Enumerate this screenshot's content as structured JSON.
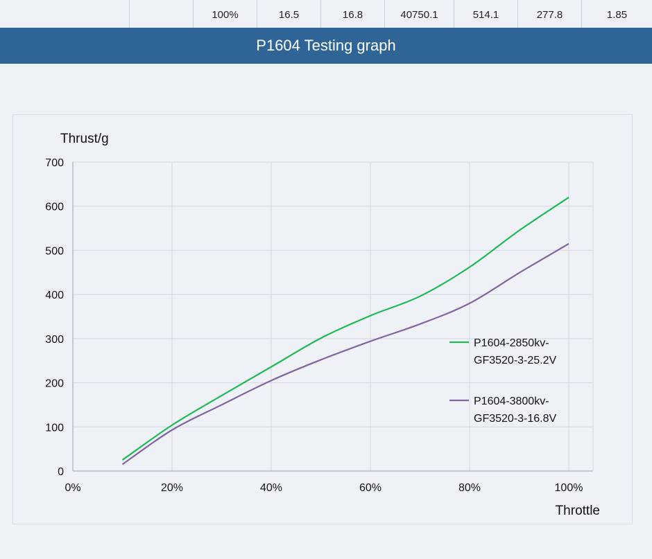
{
  "table_row": [
    "100%",
    "16.5",
    "16.8",
    "40750.1",
    "514.1",
    "277.8",
    "1.85"
  ],
  "banner_title": "P1604 Testing graph",
  "chart_data": {
    "type": "line",
    "title": "",
    "ylabel": "Thrust/g",
    "xlabel": "Throttle",
    "ylim": [
      0,
      700
    ],
    "xlim": [
      0,
      100
    ],
    "y_ticks": [
      0,
      100,
      200,
      300,
      400,
      500,
      600,
      700
    ],
    "x_ticks": [
      0,
      20,
      40,
      60,
      80,
      100
    ],
    "x_tick_labels": [
      "0%",
      "20%",
      "40%",
      "60%",
      "80%",
      "100%"
    ],
    "grid": true,
    "legend_position": "right",
    "x": [
      10,
      20,
      30,
      40,
      50,
      60,
      70,
      80,
      90,
      100
    ],
    "series": [
      {
        "name": "P1604-2850kv-GF3520-3-25.2V",
        "legend_lines": [
          "P1604-2850kv-",
          "GF3520-3-25.2V"
        ],
        "color": "#1db954",
        "values": [
          25,
          104,
          171,
          236,
          301,
          352,
          396,
          462,
          545,
          620
        ]
      },
      {
        "name": "P1604-3800kv-GF3520-3-16.8V",
        "legend_lines": [
          "P1604-3800kv-",
          "GF3520-3-16.8V"
        ],
        "color": "#8064a2",
        "values": [
          15,
          93,
          150,
          205,
          252,
          294,
          333,
          380,
          449,
          515
        ]
      }
    ]
  }
}
